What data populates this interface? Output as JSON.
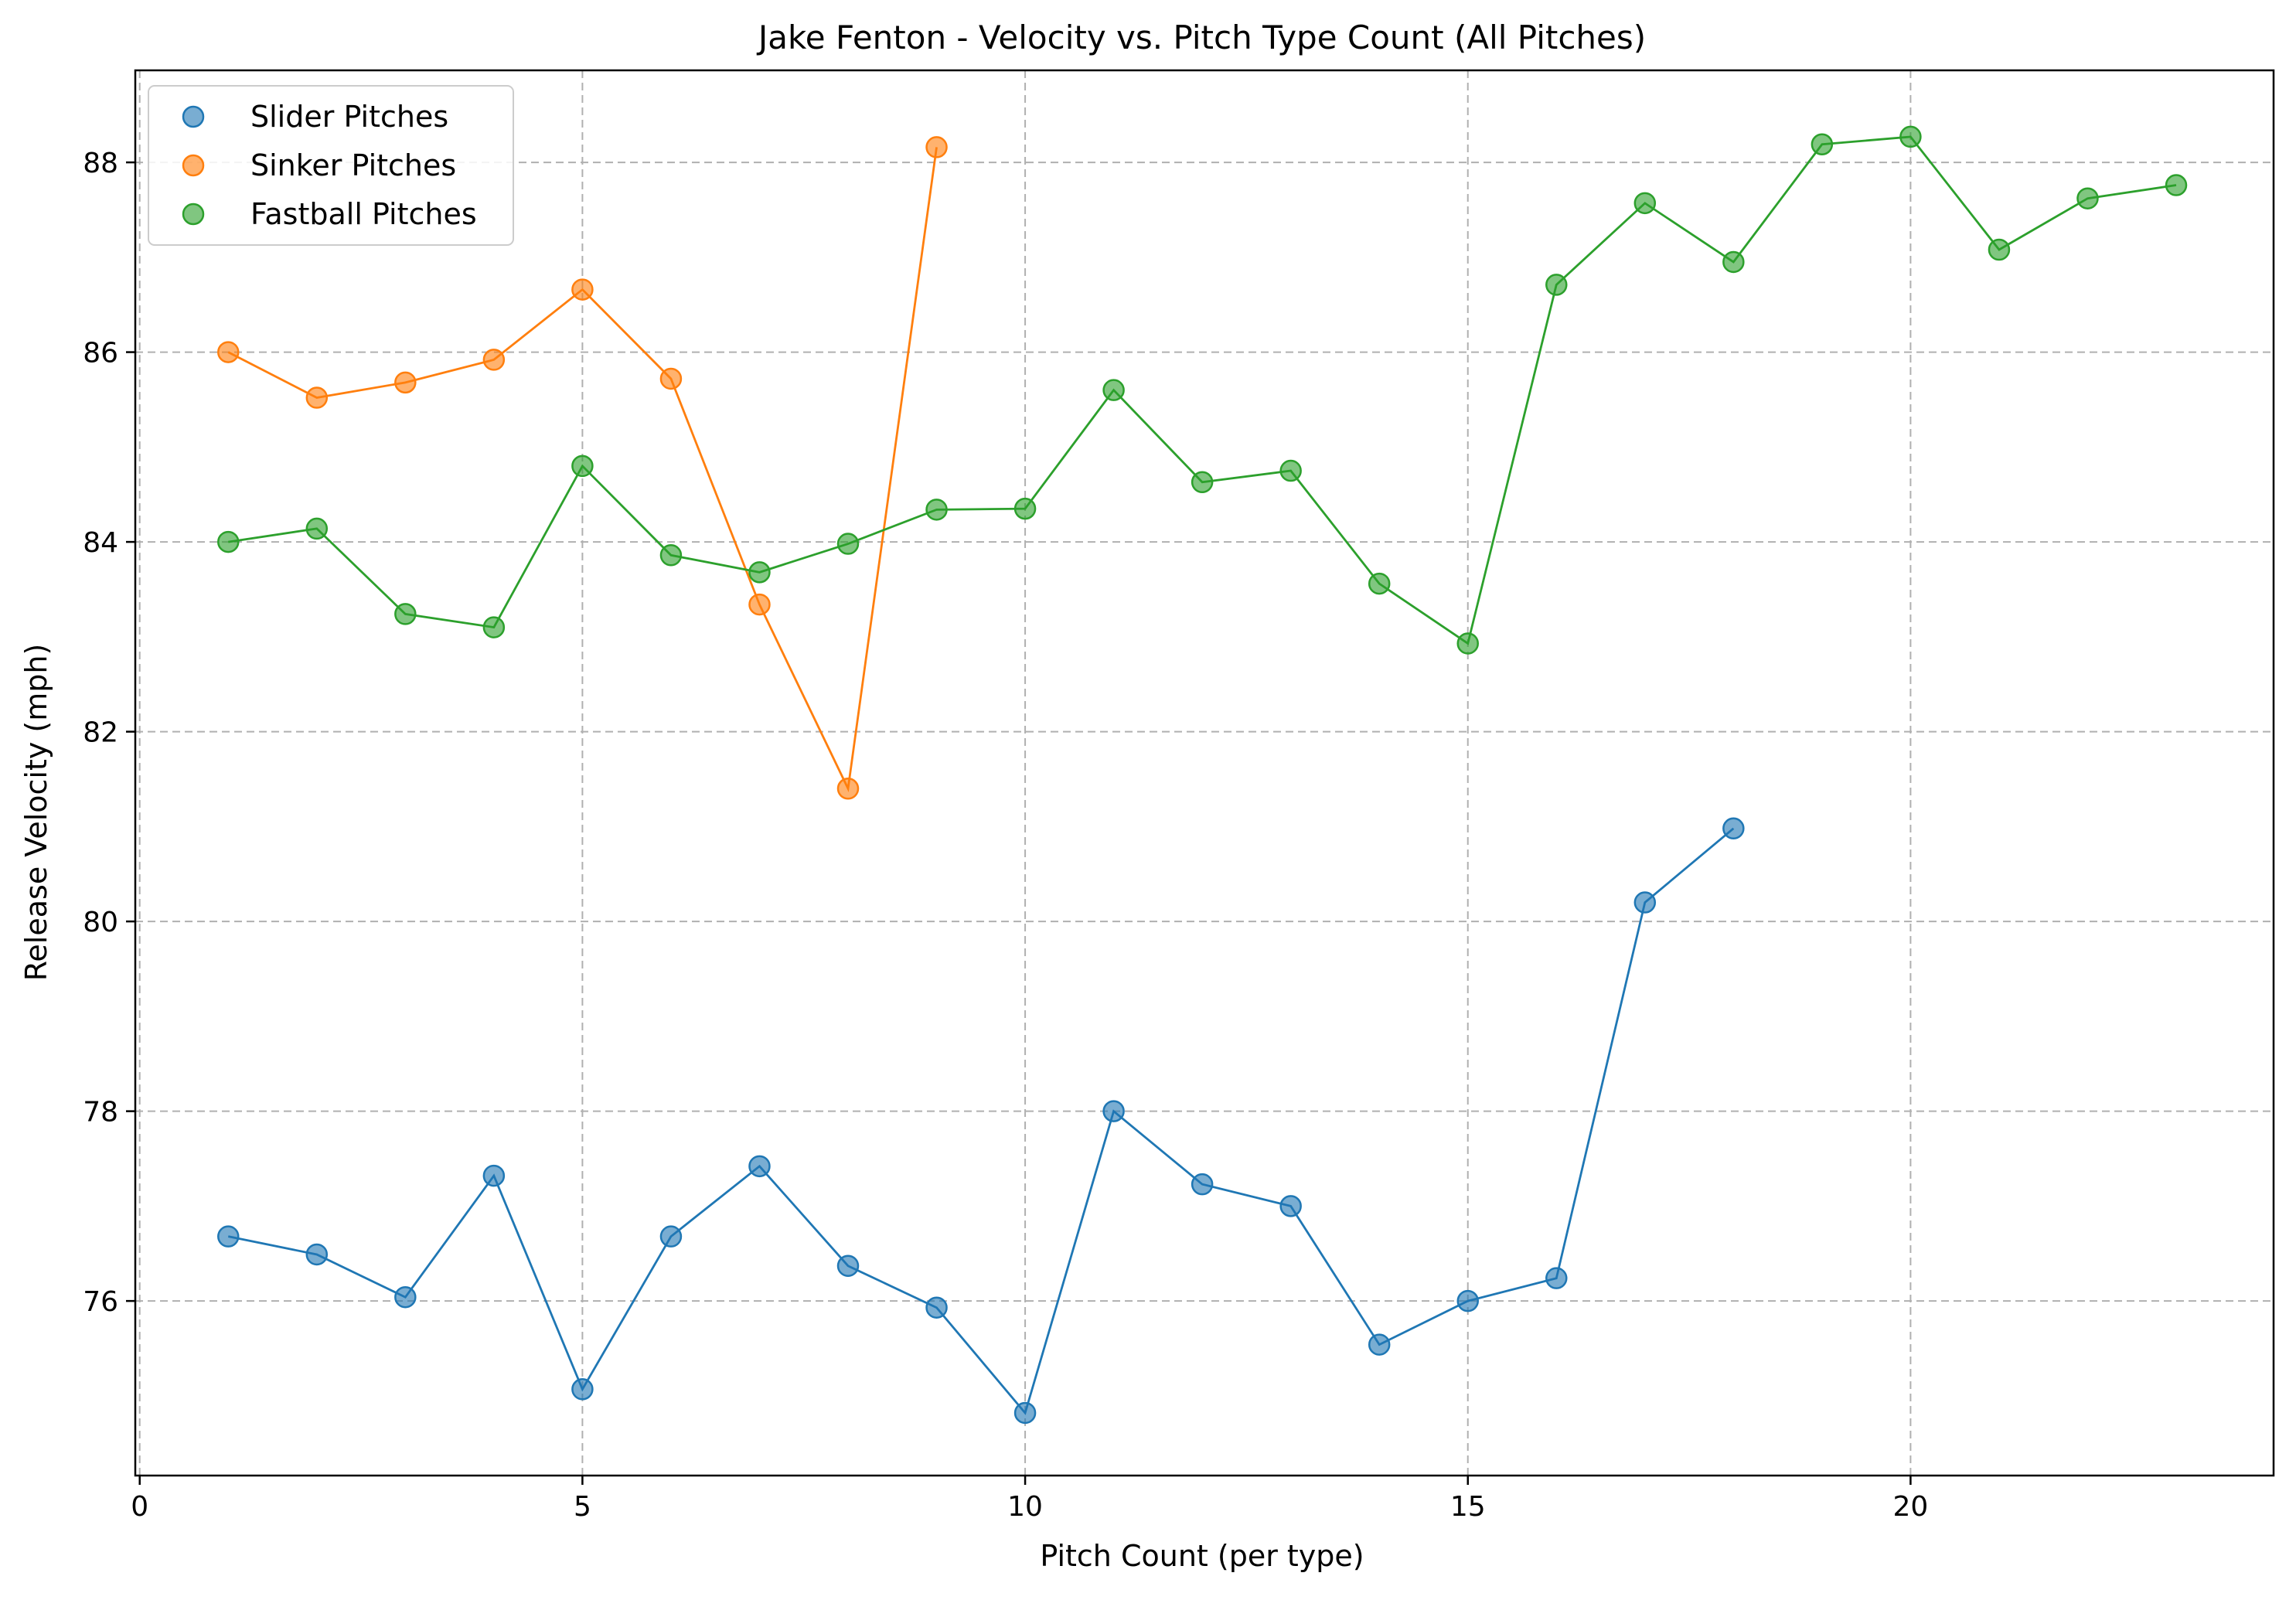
{
  "chart_data": {
    "type": "scatter",
    "title": "Jake Fenton - Velocity vs. Pitch Type Count (All Pitches)",
    "xlabel": "Pitch Count (per type)",
    "ylabel": "Release Velocity (mph)",
    "xlim": [
      -0.05,
      24.1
    ],
    "ylim": [
      74.16,
      88.97
    ],
    "xticks": [
      0,
      5,
      10,
      15,
      20
    ],
    "yticks": [
      76,
      78,
      80,
      82,
      84,
      86,
      88
    ],
    "grid": true,
    "legend_position": "top-left",
    "series": [
      {
        "name": "Slider Pitches",
        "color": "#1f77b4",
        "x": [
          1,
          2,
          3,
          4,
          5,
          6,
          7,
          8,
          9,
          10,
          11,
          12,
          13,
          14,
          15,
          16,
          17,
          18
        ],
        "y": [
          76.68,
          76.49,
          76.04,
          77.32,
          75.07,
          76.68,
          77.42,
          76.37,
          75.93,
          74.82,
          78.0,
          77.23,
          77.0,
          75.54,
          76.0,
          76.24,
          80.2,
          80.98
        ]
      },
      {
        "name": "Sinker Pitches",
        "color": "#ff7f0e",
        "x": [
          1,
          2,
          3,
          4,
          5,
          6,
          7,
          8,
          9
        ],
        "y": [
          86.0,
          85.52,
          85.68,
          85.92,
          86.66,
          85.72,
          83.34,
          81.4,
          88.16
        ]
      },
      {
        "name": "Fastball Pitches",
        "color": "#2ca02c",
        "x": [
          1,
          2,
          3,
          4,
          5,
          6,
          7,
          8,
          9,
          10,
          11,
          12,
          13,
          14,
          15,
          16,
          17,
          18,
          19,
          20,
          21,
          22,
          23
        ],
        "y": [
          84.0,
          84.14,
          83.24,
          83.1,
          84.8,
          83.86,
          83.68,
          83.98,
          84.34,
          84.35,
          85.6,
          84.63,
          84.75,
          83.56,
          82.93,
          86.71,
          87.57,
          86.95,
          88.19,
          88.27,
          87.08,
          87.62,
          87.76
        ]
      }
    ]
  }
}
